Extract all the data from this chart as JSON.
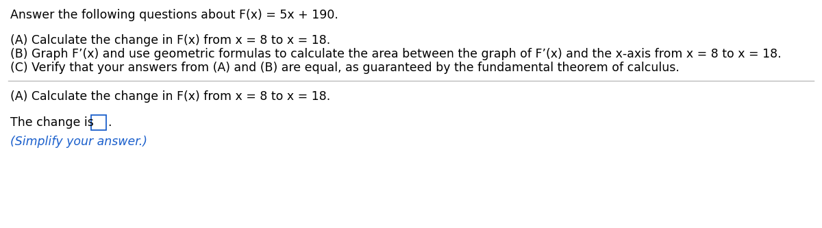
{
  "title_line": "Answer the following questions about F(x) = 5x + 190.",
  "line_A": "(A) Calculate the change in F(x) from x = 8 to x = 18.",
  "line_B": "(B) Graph F’(x) and use geometric formulas to calculate the area between the graph of F’(x) and the x-axis from x = 8 to x = 18.",
  "line_C": "(C) Verify that your answers from (A) and (B) are equal, as guaranteed by the fundamental theorem of calculus.",
  "section_A_header": "(A) Calculate the change in F(x) from x = 8 to x = 18.",
  "change_label": "The change is",
  "simplify_label": "(Simplify your answer.)",
  "background_color": "#ffffff",
  "text_color": "#000000",
  "blue_color": "#1a5fcc",
  "font_size": 12.5,
  "separator_color": "#bbbbbb"
}
